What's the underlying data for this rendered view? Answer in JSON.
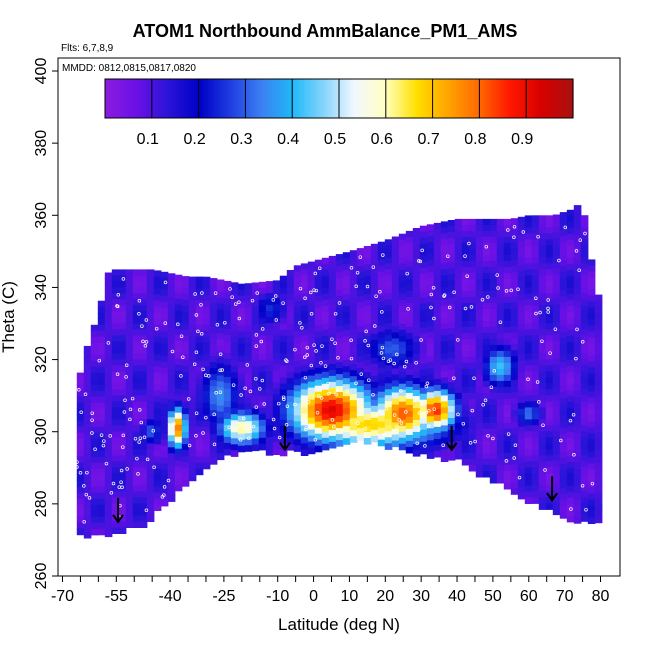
{
  "chart_data": {
    "type": "heatmap",
    "title": "ATOM1 Northbound AmmBalance_PM1_AMS",
    "annotations": {
      "flights": "Flts: 6,7,8,9",
      "dates": "MMDD: 0812,0815,0817,0820"
    },
    "xlabel": "Latitude (deg N)",
    "ylabel": "Theta (C)",
    "xlim": [
      -70,
      80
    ],
    "ylim": [
      260,
      400
    ],
    "x_tick_labels": [
      "-70",
      "-55",
      "-40",
      "-25",
      "-10",
      "0",
      "10",
      "20",
      "30",
      "40",
      "50",
      "60",
      "70",
      "80"
    ],
    "x_tick_values": [
      -70,
      -55,
      -40,
      -25,
      -10,
      0,
      10,
      20,
      30,
      40,
      50,
      60,
      70,
      80
    ],
    "x_minor_ticks": [
      -65,
      -60,
      -50,
      -45,
      -35,
      -30,
      -20,
      -15,
      -5,
      5,
      15,
      25,
      35,
      45,
      55,
      65,
      75
    ],
    "y_tick_labels": [
      "260",
      "280",
      "300",
      "320",
      "340",
      "360",
      "380",
      "400"
    ],
    "y_tick_values": [
      260,
      280,
      300,
      320,
      340,
      360,
      380,
      400
    ],
    "colorbar": {
      "range": [
        0,
        1
      ],
      "ticks": [
        0.1,
        0.2,
        0.3,
        0.4,
        0.5,
        0.6,
        0.7,
        0.8,
        0.9
      ],
      "tick_labels": [
        "0.1",
        "0.2",
        "0.3",
        "0.4",
        "0.5",
        "0.6",
        "0.7",
        "0.8",
        "0.9"
      ],
      "colors": [
        "#8a1ce0",
        "#6a10e6",
        "#2a14d8",
        "#0000c8",
        "#1f3de0",
        "#3c80f2",
        "#1fb8f8",
        "#86d4fb",
        "#f2f8ff",
        "#ffffc0",
        "#ffe000",
        "#ffa400",
        "#ff6a00",
        "#ff1800",
        "#d80000",
        "#aa1010"
      ]
    },
    "arrows": [
      {
        "lat": -54.5,
        "theta": 275
      },
      {
        "lat": -8.0,
        "theta": 295
      },
      {
        "lat": 38.5,
        "theta": 295
      },
      {
        "lat": 66.5,
        "theta": 281
      }
    ],
    "field": {
      "description": "Curtain field of ammonium balance values on a latitude/theta grid; values 0-1 mapped to colorbar",
      "lower_boundary": [
        [
          -65,
          272
        ],
        [
          -60,
          272
        ],
        [
          -53,
          273
        ],
        [
          -47,
          275
        ],
        [
          -40,
          282
        ],
        [
          -34,
          287
        ],
        [
          -26,
          293
        ],
        [
          -20,
          295
        ],
        [
          -10,
          295
        ],
        [
          -2,
          295
        ],
        [
          10,
          298
        ],
        [
          20,
          297
        ],
        [
          30,
          294
        ],
        [
          40,
          293
        ],
        [
          48,
          288
        ],
        [
          56,
          284
        ],
        [
          63,
          280
        ],
        [
          70,
          277
        ],
        [
          73,
          276
        ],
        [
          77,
          276
        ]
      ],
      "upper_boundary": [
        [
          -66,
          312
        ],
        [
          -64,
          321
        ],
        [
          -60,
          333
        ],
        [
          -57,
          345
        ],
        [
          -45,
          345
        ],
        [
          -35,
          343
        ],
        [
          -30,
          343
        ],
        [
          -20,
          341
        ],
        [
          -10,
          342
        ],
        [
          -5,
          346
        ],
        [
          10,
          350
        ],
        [
          20,
          353
        ],
        [
          30,
          357
        ],
        [
          40,
          359
        ],
        [
          55,
          359
        ],
        [
          60,
          360
        ],
        [
          67,
          360
        ],
        [
          73,
          362
        ],
        [
          75,
          365
        ],
        [
          76,
          355
        ],
        [
          78,
          345
        ],
        [
          80,
          335
        ],
        [
          80,
          300
        ],
        [
          79,
          285
        ],
        [
          77,
          276
        ]
      ],
      "hotspots": [
        {
          "lat": 5,
          "theta": 306,
          "value": 0.92,
          "lat_spread": 12,
          "theta_spread": 9
        },
        {
          "lat": 25,
          "theta": 305,
          "value": 0.82,
          "lat_spread": 9,
          "theta_spread": 8
        },
        {
          "lat": 34,
          "theta": 306,
          "value": 0.86,
          "lat_spread": 6,
          "theta_spread": 6
        },
        {
          "lat": 16,
          "theta": 302,
          "value": 0.68,
          "lat_spread": 22,
          "theta_spread": 7
        },
        {
          "lat": -20,
          "theta": 301,
          "value": 0.62,
          "lat_spread": 7,
          "theta_spread": 5
        },
        {
          "lat": -38,
          "theta": 301,
          "value": 0.78,
          "lat_spread": 2.8,
          "theta_spread": 6
        },
        {
          "lat": -26,
          "theta": 310,
          "value": 0.35,
          "lat_spread": 6,
          "theta_spread": 10
        },
        {
          "lat": 52,
          "theta": 318,
          "value": 0.42,
          "lat_spread": 5,
          "theta_spread": 6
        },
        {
          "lat": 60,
          "theta": 305,
          "value": 0.32,
          "lat_spread": 4,
          "theta_spread": 4
        },
        {
          "lat": -45,
          "theta": 300,
          "value": 0.3,
          "lat_spread": 3,
          "theta_spread": 4
        },
        {
          "lat": 22,
          "theta": 323,
          "value": 0.3,
          "lat_spread": 8,
          "theta_spread": 6
        },
        {
          "lat": -12,
          "theta": 334,
          "value": 0.25,
          "lat_spread": 5,
          "theta_spread": 5
        }
      ],
      "background_value": 0.1
    }
  }
}
